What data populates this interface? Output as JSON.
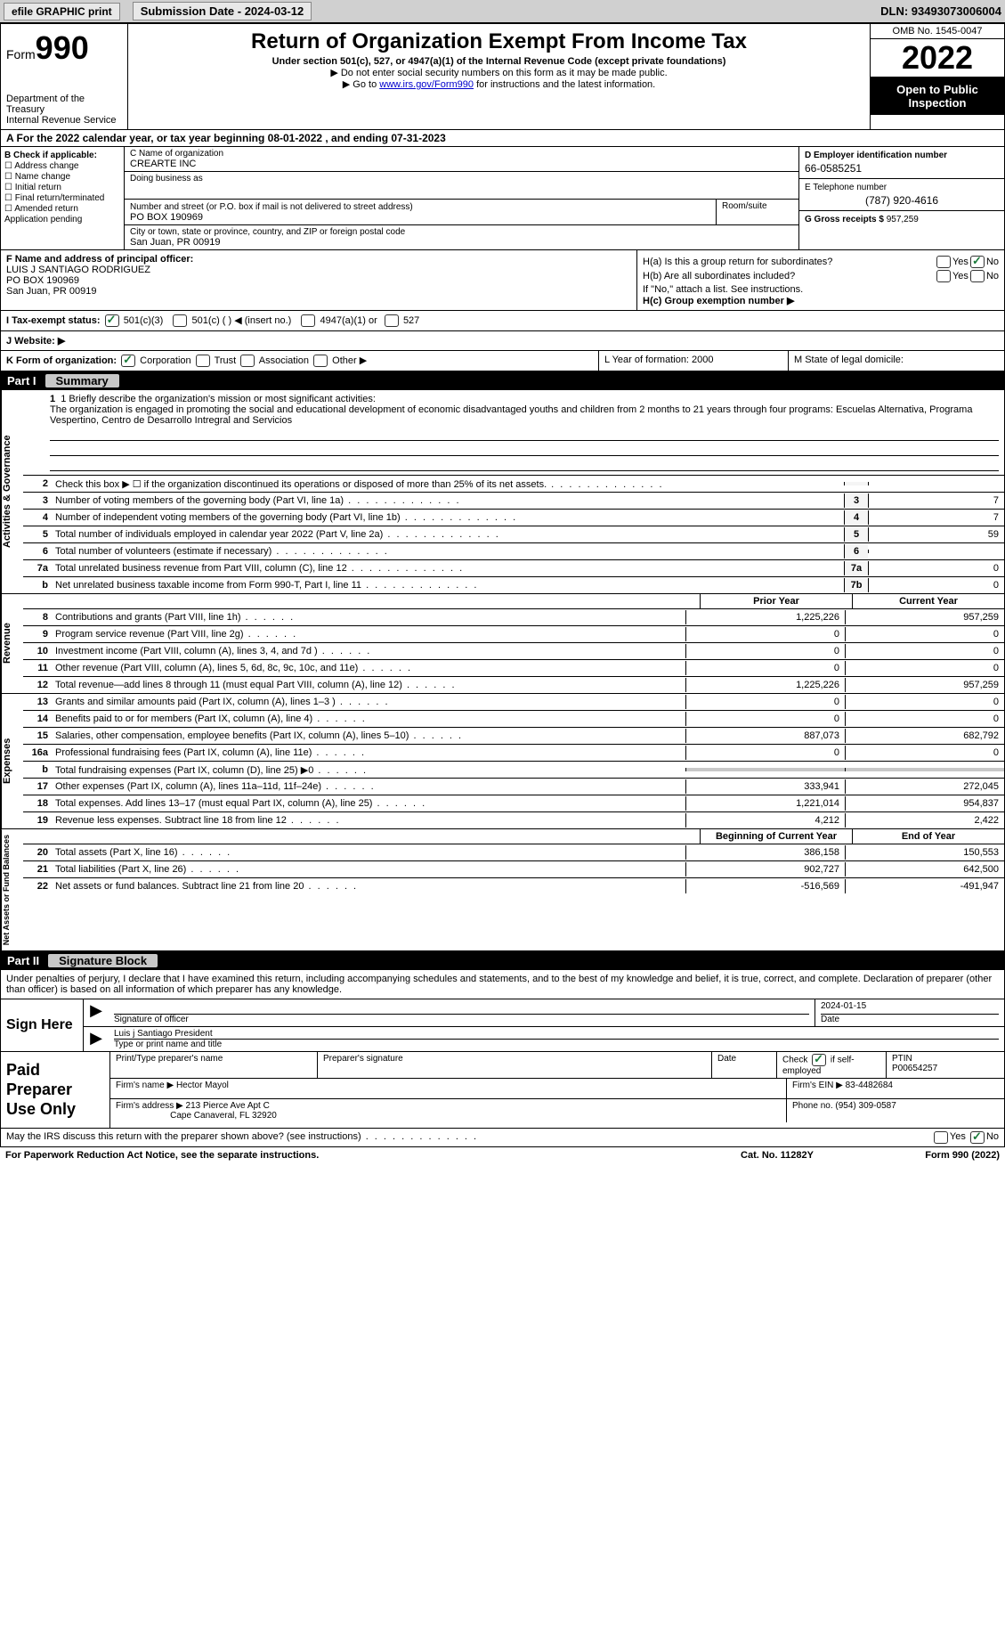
{
  "topbar": {
    "efile_label": "efile GRAPHIC print",
    "submission_label": "Submission Date - 2024-03-12",
    "dln": "DLN: 93493073006004"
  },
  "header": {
    "form_word": "Form",
    "form_num": "990",
    "dept": "Department of the Treasury",
    "irs": "Internal Revenue Service",
    "title": "Return of Organization Exempt From Income Tax",
    "subtitle": "Under section 501(c), 527, or 4947(a)(1) of the Internal Revenue Code (except private foundations)",
    "note1": "▶ Do not enter social security numbers on this form as it may be made public.",
    "note2_pre": "▶ Go to ",
    "note2_link": "www.irs.gov/Form990",
    "note2_post": " for instructions and the latest information.",
    "omb": "OMB No. 1545-0047",
    "year": "2022",
    "open": "Open to Public Inspection"
  },
  "rowA": {
    "text": "A For the 2022 calendar year, or tax year beginning 08-01-2022    , and ending 07-31-2023"
  },
  "colB": {
    "title": "B Check if applicable:",
    "opts": [
      "☐ Address change",
      "☐ Name change",
      "☐ Initial return",
      "☐ Final return/terminated",
      "☐ Amended return",
      "  Application pending"
    ]
  },
  "colC": {
    "name_label": "C Name of organization",
    "name": "CREARTE INC",
    "dba_label": "Doing business as",
    "dba": "",
    "street_label": "Number and street (or P.O. box if mail is not delivered to street address)",
    "street": "PO BOX 190969",
    "room_label": "Room/suite",
    "city_label": "City or town, state or province, country, and ZIP or foreign postal code",
    "city": "San Juan, PR  00919"
  },
  "colD": {
    "ein_label": "D Employer identification number",
    "ein": "66-0585251",
    "phone_label": "E Telephone number",
    "phone": "(787) 920-4616",
    "gross_label": "G Gross receipts $",
    "gross": "957,259"
  },
  "colF": {
    "label": "F  Name and address of principal officer:",
    "name": "LUIS J SANTIAGO RODRIGUEZ",
    "addr1": "PO BOX 190969",
    "addr2": "San Juan, PR  00919"
  },
  "colH": {
    "ha": "H(a)  Is this a group return for subordinates?",
    "hb": "H(b)  Are all subordinates included?",
    "hb_note": "If \"No,\" attach a list. See instructions.",
    "hc": "H(c)  Group exemption number ▶",
    "yes": "Yes",
    "no": "No"
  },
  "rowI": {
    "label": "I   Tax-exempt status:",
    "o1": "501(c)(3)",
    "o2": "501(c) (  ) ◀ (insert no.)",
    "o3": "4947(a)(1) or",
    "o4": "527"
  },
  "rowJ": {
    "label": "J   Website: ▶"
  },
  "rowK": {
    "label": "K Form of organization:",
    "o1": "Corporation",
    "o2": "Trust",
    "o3": "Association",
    "o4": "Other ▶",
    "l": "L Year of formation: 2000",
    "m": "M State of legal domicile:"
  },
  "part1": {
    "label": "Part I",
    "title": "Summary"
  },
  "mission": {
    "intro": "1   Briefly describe the organization's mission or most significant activities:",
    "text": "The organization is engaged in promoting the social and educational development of economic disadvantaged youths and children from 2 months to 21 years through four programs: Escuelas Alternativa, Programa Vespertino, Centro de Desarrollo Intregral and Servicios"
  },
  "lines_gov": [
    {
      "n": "2",
      "d": "Check this box ▶ ☐  if the organization discontinued its operations or disposed of more than 25% of its net assets.",
      "box": "",
      "v": ""
    },
    {
      "n": "3",
      "d": "Number of voting members of the governing body (Part VI, line 1a)",
      "box": "3",
      "v": "7"
    },
    {
      "n": "4",
      "d": "Number of independent voting members of the governing body (Part VI, line 1b)",
      "box": "4",
      "v": "7"
    },
    {
      "n": "5",
      "d": "Total number of individuals employed in calendar year 2022 (Part V, line 2a)",
      "box": "5",
      "v": "59"
    },
    {
      "n": "6",
      "d": "Total number of volunteers (estimate if necessary)",
      "box": "6",
      "v": ""
    },
    {
      "n": "7a",
      "d": "Total unrelated business revenue from Part VIII, column (C), line 12",
      "box": "7a",
      "v": "0"
    },
    {
      "n": "b",
      "d": "Net unrelated business taxable income from Form 990-T, Part I, line 11",
      "box": "7b",
      "v": "0"
    }
  ],
  "col_hdr": {
    "prior": "Prior Year",
    "current": "Current Year",
    "boy": "Beginning of Current Year",
    "eoy": "End of Year"
  },
  "lines_rev": [
    {
      "n": "8",
      "d": "Contributions and grants (Part VIII, line 1h)",
      "p": "1,225,226",
      "c": "957,259"
    },
    {
      "n": "9",
      "d": "Program service revenue (Part VIII, line 2g)",
      "p": "0",
      "c": "0"
    },
    {
      "n": "10",
      "d": "Investment income (Part VIII, column (A), lines 3, 4, and 7d )",
      "p": "0",
      "c": "0"
    },
    {
      "n": "11",
      "d": "Other revenue (Part VIII, column (A), lines 5, 6d, 8c, 9c, 10c, and 11e)",
      "p": "0",
      "c": "0"
    },
    {
      "n": "12",
      "d": "Total revenue—add lines 8 through 11 (must equal Part VIII, column (A), line 12)",
      "p": "1,225,226",
      "c": "957,259"
    }
  ],
  "lines_exp": [
    {
      "n": "13",
      "d": "Grants and similar amounts paid (Part IX, column (A), lines 1–3 )",
      "p": "0",
      "c": "0"
    },
    {
      "n": "14",
      "d": "Benefits paid to or for members (Part IX, column (A), line 4)",
      "p": "0",
      "c": "0"
    },
    {
      "n": "15",
      "d": "Salaries, other compensation, employee benefits (Part IX, column (A), lines 5–10)",
      "p": "887,073",
      "c": "682,792"
    },
    {
      "n": "16a",
      "d": "Professional fundraising fees (Part IX, column (A), line 11e)",
      "p": "0",
      "c": "0"
    },
    {
      "n": "b",
      "d": "Total fundraising expenses (Part IX, column (D), line 25) ▶0",
      "p": "shade",
      "c": "shade"
    },
    {
      "n": "17",
      "d": "Other expenses (Part IX, column (A), lines 11a–11d, 11f–24e)",
      "p": "333,941",
      "c": "272,045"
    },
    {
      "n": "18",
      "d": "Total expenses. Add lines 13–17 (must equal Part IX, column (A), line 25)",
      "p": "1,221,014",
      "c": "954,837"
    },
    {
      "n": "19",
      "d": "Revenue less expenses. Subtract line 18 from line 12",
      "p": "4,212",
      "c": "2,422"
    }
  ],
  "lines_net": [
    {
      "n": "20",
      "d": "Total assets (Part X, line 16)",
      "p": "386,158",
      "c": "150,553"
    },
    {
      "n": "21",
      "d": "Total liabilities (Part X, line 26)",
      "p": "902,727",
      "c": "642,500"
    },
    {
      "n": "22",
      "d": "Net assets or fund balances. Subtract line 21 from line 20",
      "p": "-516,569",
      "c": "-491,947"
    }
  ],
  "side": {
    "gov": "Activities & Governance",
    "rev": "Revenue",
    "exp": "Expenses",
    "net": "Net Assets or Fund Balances"
  },
  "part2": {
    "label": "Part II",
    "title": "Signature Block"
  },
  "sig": {
    "intro": "Under penalties of perjury, I declare that I have examined this return, including accompanying schedules and statements, and to the best of my knowledge and belief, it is true, correct, and complete. Declaration of preparer (other than officer) is based on all information of which preparer has any knowledge.",
    "sign_here": "Sign Here",
    "sig_officer": "Signature of officer",
    "date": "Date",
    "date_val": "2024-01-15",
    "name_title": "Luis j Santiago  President",
    "name_title_label": "Type or print name and title"
  },
  "paid": {
    "title": "Paid Preparer Use Only",
    "h1": "Print/Type preparer's name",
    "h2": "Preparer's signature",
    "h3": "Date",
    "h4_a": "Check",
    "h4_b": "if self-employed",
    "h5": "PTIN",
    "ptin": "P00654257",
    "firm_name_label": "Firm's name      ▶",
    "firm_name": "Hector Mayol",
    "firm_ein_label": "Firm's EIN ▶",
    "firm_ein": "83-4482684",
    "firm_addr_label": "Firm's address ▶",
    "firm_addr1": "213 Pierce Ave Apt C",
    "firm_addr2": "Cape Canaveral, FL  32920",
    "phone_label": "Phone no.",
    "phone": "(954) 309-0587"
  },
  "footer": {
    "may_irs": "May the IRS discuss this return with the preparer shown above? (see instructions)",
    "yes": "Yes",
    "no": "No",
    "pra": "For Paperwork Reduction Act Notice, see the separate instructions.",
    "cat": "Cat. No. 11282Y",
    "form": "Form 990 (2022)"
  }
}
